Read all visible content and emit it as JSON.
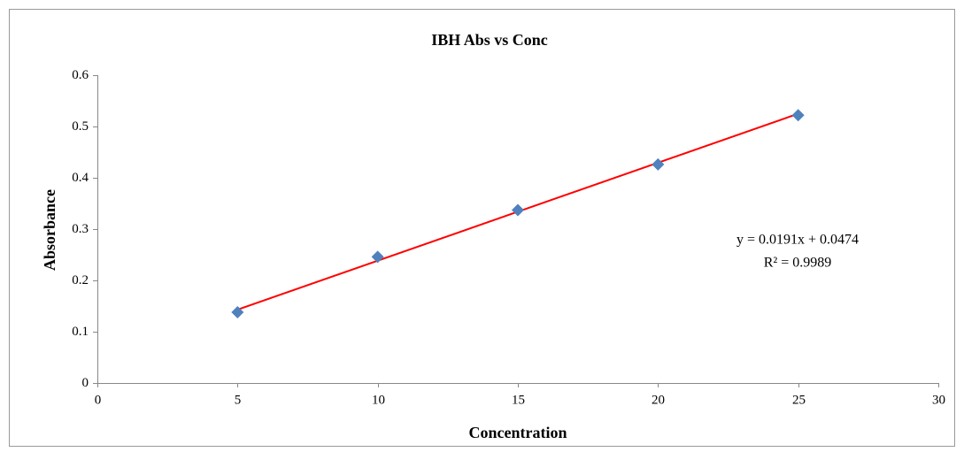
{
  "chart_data": {
    "type": "scatter",
    "title": "IBH Abs vs Conc",
    "x_label": "Concentration",
    "y_label": "Absorbance",
    "series": [
      {
        "name": "Absorbance",
        "color": "#4f81bd",
        "x": [
          5,
          10,
          15,
          20,
          25
        ],
        "values": [
          0.138,
          0.246,
          0.337,
          0.426,
          0.522
        ]
      }
    ],
    "trendline": {
      "type": "linear",
      "slope": 0.0191,
      "intercept": 0.0474,
      "color": "#ff0000"
    },
    "annotations": [
      "y = 0.0191x + 0.0474",
      "R² = 0.9989"
    ],
    "xlim": [
      0,
      30
    ],
    "xticks": [
      0,
      5,
      10,
      15,
      20,
      25,
      30
    ],
    "ylim": [
      0,
      0.6
    ],
    "yticks": [
      0,
      0.1,
      0.2,
      0.3,
      0.4,
      0.5,
      0.6
    ],
    "grid": false,
    "legend": false
  }
}
